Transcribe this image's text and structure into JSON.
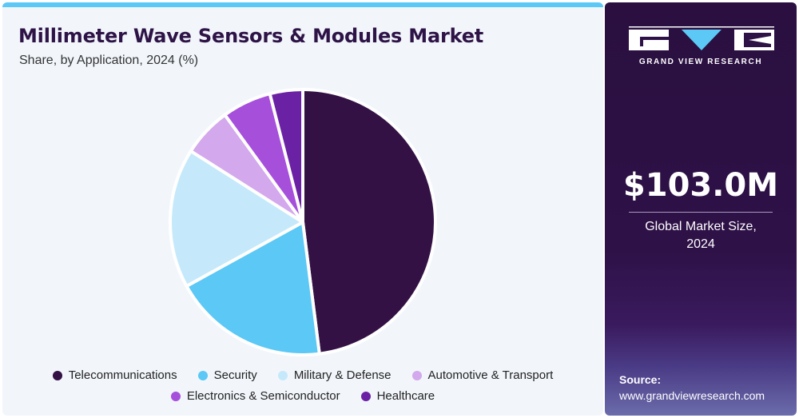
{
  "header": {
    "title": "Millimeter Wave Sensors & Modules Market",
    "subtitle": "Share, by Application, 2024 (%)"
  },
  "chart_data": {
    "type": "pie",
    "title": "Millimeter Wave Sensors & Modules Market",
    "subtitle": "Share, by Application, 2024 (%)",
    "categories": [
      "Telecommunications",
      "Security",
      "Military & Defense",
      "Automotive & Transport",
      "Electronics & Semiconductor",
      "Healthcare"
    ],
    "values": [
      48,
      19,
      17,
      6,
      6,
      4
    ],
    "colors": [
      "#331145",
      "#5bc8f5",
      "#c5e9fb",
      "#d3a8ec",
      "#a64fdb",
      "#6a21a3"
    ],
    "legend_position": "bottom"
  },
  "legend_rows": [
    [
      "Telecommunications",
      "Security",
      "Military & Defense",
      "Automotive & Transport"
    ],
    [
      "Electronics & Semiconductor",
      "Healthcare"
    ]
  ],
  "sidebar": {
    "brand": "GRAND VIEW RESEARCH",
    "market_size": "$103.0M",
    "market_label_line1": "Global Market Size,",
    "market_label_line2": "2024",
    "source_label": "Source:",
    "source_url": "www.grandviewresearch.com"
  }
}
